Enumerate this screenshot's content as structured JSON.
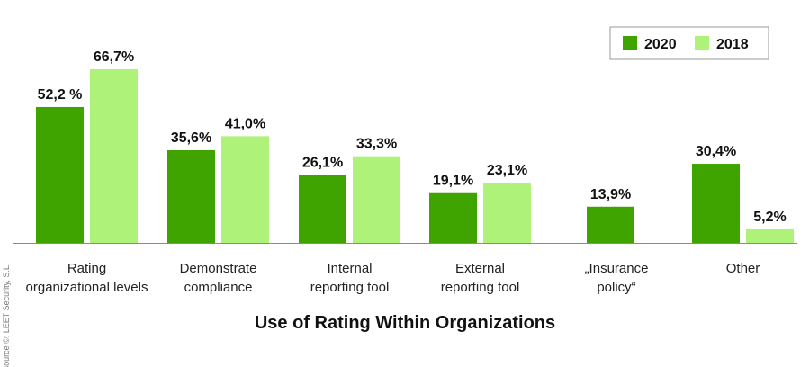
{
  "chart_data": {
    "type": "bar",
    "title": "Use of Rating Within Organizations",
    "categories": [
      [
        "Rating",
        "organizational levels"
      ],
      [
        "Demonstrate",
        "compliance"
      ],
      [
        "Internal",
        "reporting tool"
      ],
      [
        "External",
        "reporting tool"
      ],
      [
        "„Insurance",
        "policy“"
      ],
      [
        "Other"
      ]
    ],
    "series": [
      {
        "name": "2020",
        "color": "#3fa300",
        "values": [
          52.2,
          35.6,
          26.1,
          19.1,
          13.9,
          30.4
        ],
        "labels": [
          "52,2 %",
          "35,6%",
          "26,1%",
          "19,1%",
          "13,9%",
          "30,4%"
        ]
      },
      {
        "name": "2018",
        "color": "#aef27a",
        "values": [
          66.7,
          41.0,
          33.3,
          23.1,
          null,
          5.2
        ],
        "labels": [
          "66,7%",
          "41,0%",
          "33,3%",
          "23,1%",
          null,
          "5,2%"
        ]
      }
    ],
    "ylim": [
      0,
      70
    ],
    "grid": false,
    "legend_position": "top-right"
  },
  "source": "source ©: LEET Security, S.L."
}
